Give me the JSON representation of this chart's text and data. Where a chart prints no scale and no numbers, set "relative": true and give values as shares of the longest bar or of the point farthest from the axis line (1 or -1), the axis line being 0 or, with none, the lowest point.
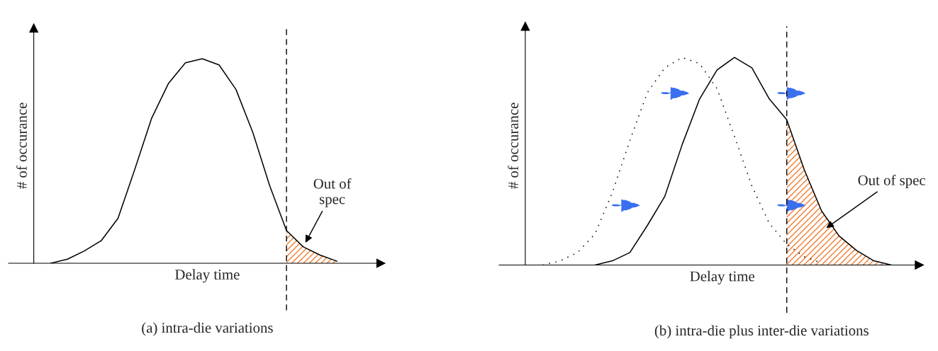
{
  "chart_data": [
    {
      "type": "line",
      "relative": true,
      "xlabel": "Delay time",
      "ylabel": "# of occurance",
      "categories": [
        null,
        null,
        null,
        null,
        null,
        null,
        null,
        null,
        null,
        null,
        null,
        null,
        null,
        null,
        null,
        null,
        null,
        null,
        null,
        null,
        null
      ],
      "series": [
        {
          "color": "#000000",
          "line_style": "solid",
          "values": [
            null,
            0.0,
            0.02,
            0.06,
            0.11,
            0.22,
            0.46,
            0.71,
            0.88,
            0.98,
            1.0,
            0.97,
            0.85,
            0.64,
            0.38,
            0.16,
            0.08,
            0.04,
            0.01,
            null,
            null
          ]
        },
        {
          "type": "area",
          "color": "#f07c30",
          "values": [
            null,
            null,
            null,
            null,
            null,
            null,
            null,
            null,
            null,
            null,
            null,
            null,
            null,
            null,
            null,
            0.16,
            0.08,
            0.04,
            0.01,
            null,
            null
          ]
        }
      ],
      "annotations": [
        "Out of\nspec",
        "(a) intra-die variations"
      ]
    },
    {
      "type": "line",
      "relative": true,
      "xlabel": "Delay time",
      "ylabel": "# of occurance",
      "categories": [
        null,
        null,
        null,
        null,
        null,
        null,
        null,
        null,
        null,
        null,
        null,
        null,
        null,
        null,
        null,
        null,
        null,
        null,
        null,
        null,
        null,
        null,
        null
      ],
      "series": [
        {
          "color": "#000000",
          "line_style": "dotted",
          "values": [
            null,
            0.0,
            0.02,
            0.06,
            0.15,
            0.35,
            0.6,
            0.83,
            0.95,
            1.0,
            0.97,
            0.85,
            0.62,
            0.38,
            0.2,
            0.1,
            0.04,
            0.01,
            null,
            null,
            null,
            null,
            null
          ]
        },
        {
          "color": "#000000",
          "line_style": "solid",
          "values": [
            null,
            null,
            null,
            null,
            0.0,
            0.02,
            0.06,
            0.19,
            0.33,
            0.58,
            0.8,
            0.94,
            1.0,
            0.95,
            0.8,
            0.7,
            0.46,
            0.26,
            0.14,
            0.07,
            0.02,
            0.0,
            null
          ]
        },
        {
          "type": "area",
          "color": "#f07c30",
          "values": [
            null,
            null,
            null,
            null,
            null,
            null,
            null,
            null,
            null,
            null,
            null,
            null,
            null,
            null,
            null,
            0.7,
            0.46,
            0.26,
            0.14,
            0.07,
            0.02,
            0.0,
            null
          ]
        }
      ],
      "annotations": [
        "Out of spec",
        "(b) intra-die plus inter-die variations"
      ]
    }
  ]
}
